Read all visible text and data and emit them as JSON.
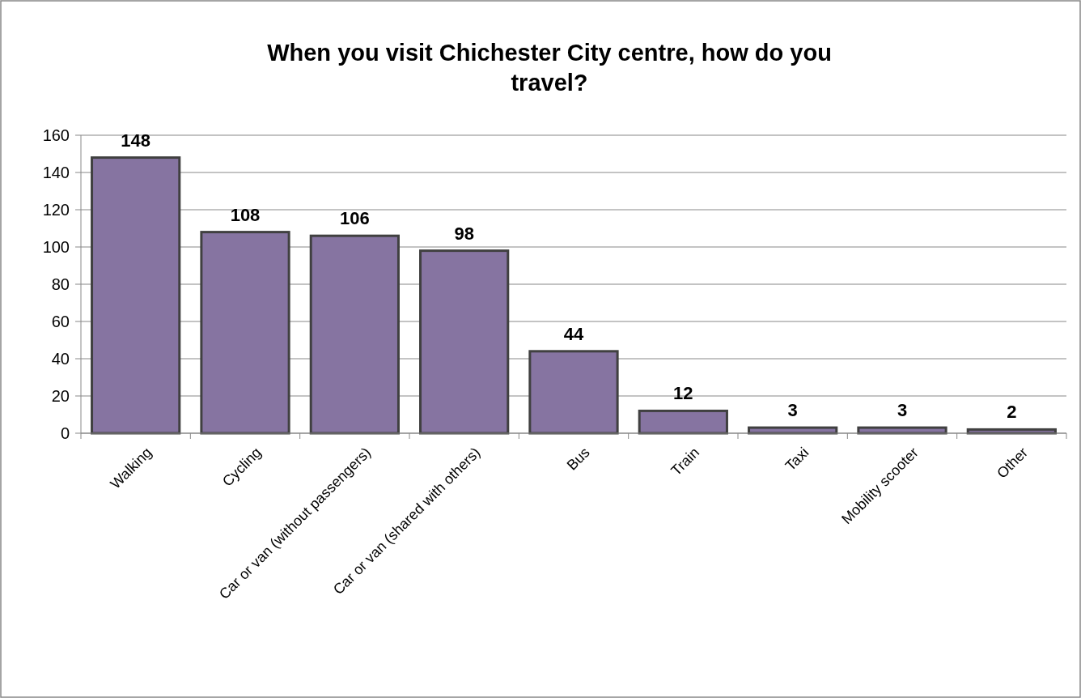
{
  "chart_data": {
    "type": "bar",
    "title": "When you visit Chichester City centre, how do you travel?",
    "categories": [
      "Walking",
      "Cycling",
      "Car or van (without passengers)",
      "Car or van (shared with others)",
      "Bus",
      "Train",
      "Taxi",
      "Mobility scooter",
      "Other"
    ],
    "values": [
      148,
      108,
      106,
      98,
      44,
      12,
      3,
      3,
      2
    ],
    "color": "#8674a1",
    "ylim": [
      0,
      160
    ],
    "yticks": [
      0,
      20,
      40,
      60,
      80,
      100,
      120,
      140,
      160
    ],
    "grid": "y",
    "data_labels": true
  }
}
